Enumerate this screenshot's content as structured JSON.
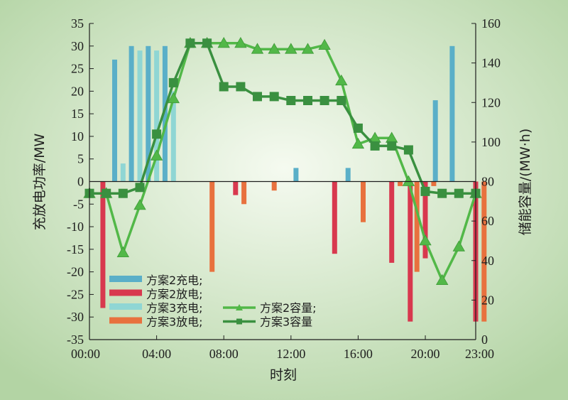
{
  "chart_data": {
    "type": "bar+line",
    "x_axis": {
      "label": "时刻",
      "ticks": [
        "00:00",
        "04:00",
        "08:00",
        "12:00",
        "16:00",
        "20:00",
        "23:00"
      ],
      "range_hours": [
        0,
        23
      ]
    },
    "y_left": {
      "label": "充放电功率/MW",
      "range": [
        -35,
        35
      ],
      "ticks": [
        -35,
        -30,
        -25,
        -20,
        -15,
        -10,
        -5,
        0,
        5,
        10,
        15,
        20,
        25,
        30,
        35
      ]
    },
    "y_right": {
      "label": "储能容量/(MW·h)",
      "range": [
        0,
        160
      ],
      "ticks": [
        0,
        20,
        40,
        60,
        80,
        100,
        120,
        140,
        160
      ]
    },
    "bar_series": [
      {
        "name": "方案2充电",
        "color": "#5aafc8",
        "points": [
          [
            1.5,
            27
          ],
          [
            2.5,
            30
          ],
          [
            3.5,
            30
          ],
          [
            4.5,
            30
          ],
          [
            12.3,
            3
          ],
          [
            15.4,
            3
          ],
          [
            20.6,
            18
          ],
          [
            21.6,
            30
          ]
        ]
      },
      {
        "name": "方案2放电",
        "color": "#d8384e",
        "points": [
          [
            0.8,
            -28
          ],
          [
            8.7,
            -3
          ],
          [
            14.6,
            -16
          ],
          [
            18.0,
            -18
          ],
          [
            19.1,
            -31
          ],
          [
            20.0,
            -17
          ],
          [
            23.0,
            -31
          ]
        ]
      },
      {
        "name": "方案3充电",
        "color": "#8fd6d4",
        "points": [
          [
            2.0,
            4
          ],
          [
            3.0,
            29
          ],
          [
            4.0,
            29
          ],
          [
            5.0,
            20
          ]
        ]
      },
      {
        "name": "方案3放电",
        "color": "#e8713e",
        "points": [
          [
            7.3,
            -20
          ],
          [
            9.2,
            -5
          ],
          [
            11.0,
            -2
          ],
          [
            16.3,
            -9
          ],
          [
            18.5,
            -1
          ],
          [
            19.5,
            -20
          ],
          [
            20.5,
            -1
          ],
          [
            23.5,
            -31
          ]
        ]
      }
    ],
    "line_series": [
      {
        "name": "方案2容量",
        "color": "#52b848",
        "marker": "triangle",
        "x": [
          0,
          1,
          2,
          3,
          4,
          5,
          6,
          7,
          8,
          9,
          10,
          11,
          12,
          13,
          14,
          15,
          16,
          17,
          18,
          19,
          20,
          21,
          22,
          23
        ],
        "y": [
          74,
          74,
          44,
          68,
          93,
          122,
          150,
          150,
          150,
          150,
          147,
          147,
          147,
          147,
          149,
          131,
          99,
          102,
          102,
          80,
          50,
          30,
          47,
          74
        ]
      },
      {
        "name": "方案3容量",
        "color": "#3a9040",
        "marker": "square",
        "x": [
          0,
          1,
          2,
          3,
          4,
          5,
          6,
          7,
          8,
          9,
          10,
          11,
          12,
          13,
          14,
          15,
          16,
          17,
          18,
          19,
          20,
          21,
          22,
          23
        ],
        "y": [
          74,
          74,
          74,
          77,
          104,
          130,
          150,
          150,
          128,
          128,
          123,
          123,
          121,
          121,
          121,
          121,
          107,
          98,
          98,
          96,
          75,
          74,
          74,
          74
        ]
      }
    ],
    "legend": {
      "position": "bottom-left",
      "items": [
        {
          "label": "方案2充电;",
          "series": "方案2充电",
          "kind": "bar"
        },
        {
          "label": "方案2放电;",
          "series": "方案2放电",
          "kind": "bar"
        },
        {
          "label": "方案3充电;",
          "series": "方案3充电",
          "kind": "bar"
        },
        {
          "label": "方案3放电;",
          "series": "方案3放电",
          "kind": "bar"
        },
        {
          "label": "方案2容量;",
          "series": "方案2容量",
          "kind": "line-triangle"
        },
        {
          "label": "方案3容量",
          "series": "方案3容量",
          "kind": "line-square"
        }
      ]
    },
    "grid": false,
    "background": {
      "type": "radial-gradient",
      "center": "#f5faf0",
      "edge": "#b3d4a4"
    }
  }
}
